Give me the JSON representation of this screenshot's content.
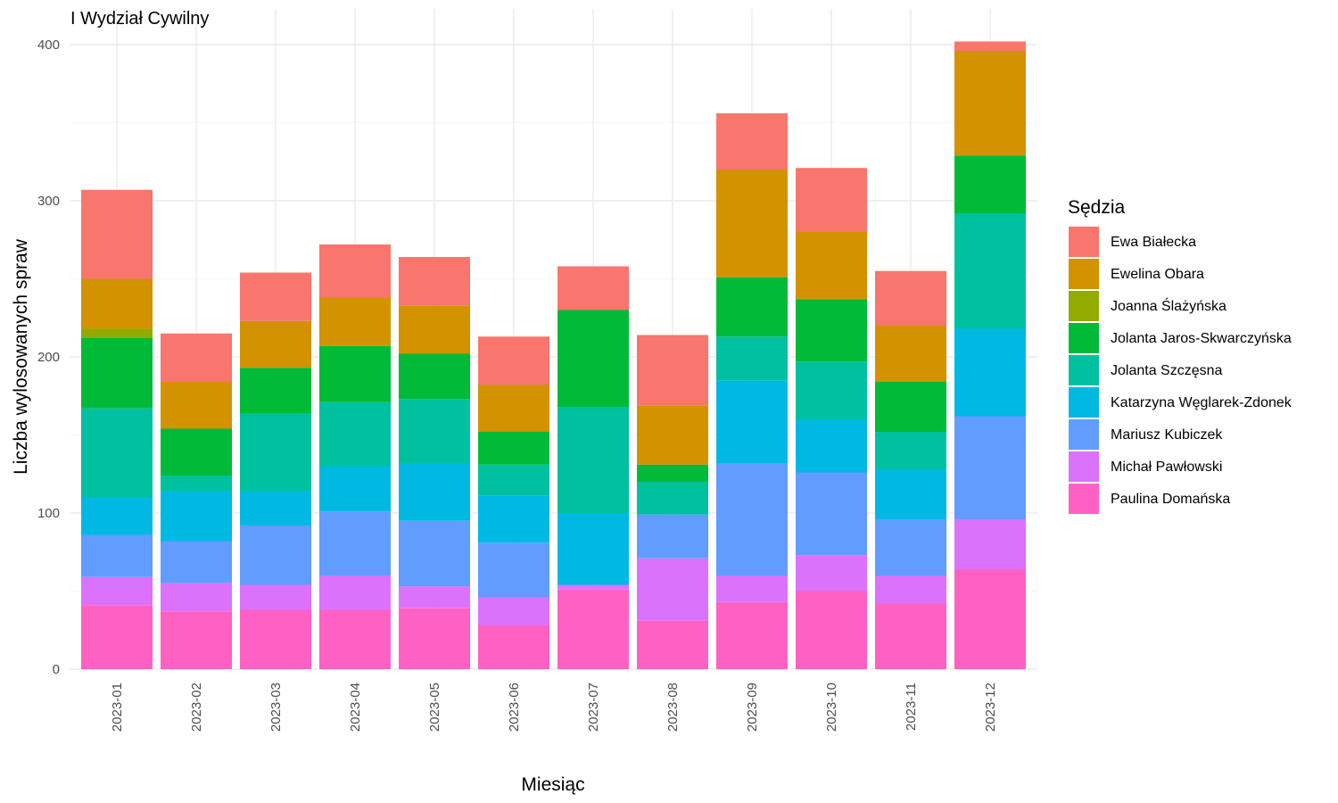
{
  "chart_data": {
    "type": "bar",
    "stacked": true,
    "title": "I Wydział Cywilny",
    "xlabel": "Miesiąc",
    "ylabel": "Liczba wylosowanych spraw",
    "ylim": [
      0,
      410
    ],
    "yticks": [
      0,
      100,
      200,
      300,
      400
    ],
    "grid": true,
    "legend_title": "Sędzia",
    "legend_position": "right",
    "categories": [
      "2023-01",
      "2023-02",
      "2023-03",
      "2023-04",
      "2023-05",
      "2023-06",
      "2023-07",
      "2023-08",
      "2023-09",
      "2023-10",
      "2023-11",
      "2023-12"
    ],
    "series": [
      {
        "name": "Paulina Domańska",
        "color": "#FF61C3",
        "values": [
          41,
          37,
          38,
          38,
          39,
          28,
          51,
          31,
          43,
          50,
          42,
          64
        ]
      },
      {
        "name": "Michał Pawłowski",
        "color": "#DB72FB",
        "values": [
          18,
          18,
          16,
          22,
          14,
          18,
          3,
          40,
          17,
          23,
          18,
          32
        ]
      },
      {
        "name": "Mariusz Kubiczek",
        "color": "#619CFF",
        "values": [
          27,
          27,
          38,
          41,
          42,
          35,
          0,
          28,
          72,
          53,
          36,
          66
        ]
      },
      {
        "name": "Katarzyna Węglarek-Zdonek",
        "color": "#00B9E3",
        "values": [
          24,
          32,
          22,
          29,
          37,
          30,
          46,
          0,
          53,
          34,
          32,
          56
        ]
      },
      {
        "name": "Jolanta Szczęsna",
        "color": "#00C19F",
        "values": [
          57,
          10,
          50,
          41,
          41,
          20,
          68,
          21,
          28,
          37,
          24,
          74
        ]
      },
      {
        "name": "Jolanta Jaros-Skwarczyńska",
        "color": "#00BA38",
        "values": [
          45,
          30,
          29,
          36,
          29,
          21,
          62,
          11,
          38,
          40,
          32,
          37
        ]
      },
      {
        "name": "Joanna Ślażyńska",
        "color": "#93AA00",
        "values": [
          6,
          0,
          0,
          0,
          0,
          0,
          0,
          0,
          0,
          0,
          0,
          0
        ]
      },
      {
        "name": "Ewelina Obara",
        "color": "#D39200",
        "values": [
          32,
          30,
          30,
          31,
          31,
          30,
          0,
          38,
          69,
          43,
          36,
          67
        ]
      },
      {
        "name": "Ewa Białecka",
        "color": "#F8766D",
        "values": [
          57,
          31,
          31,
          34,
          31,
          31,
          28,
          45,
          36,
          41,
          35,
          6
        ]
      }
    ],
    "legend_order": [
      "Ewa Białecka",
      "Ewelina Obara",
      "Joanna Ślażyńska",
      "Jolanta Jaros-Skwarczyńska",
      "Jolanta Szczęsna",
      "Katarzyna Węglarek-Zdonek",
      "Mariusz Kubiczek",
      "Michał Pawłowski",
      "Paulina Domańska"
    ]
  }
}
